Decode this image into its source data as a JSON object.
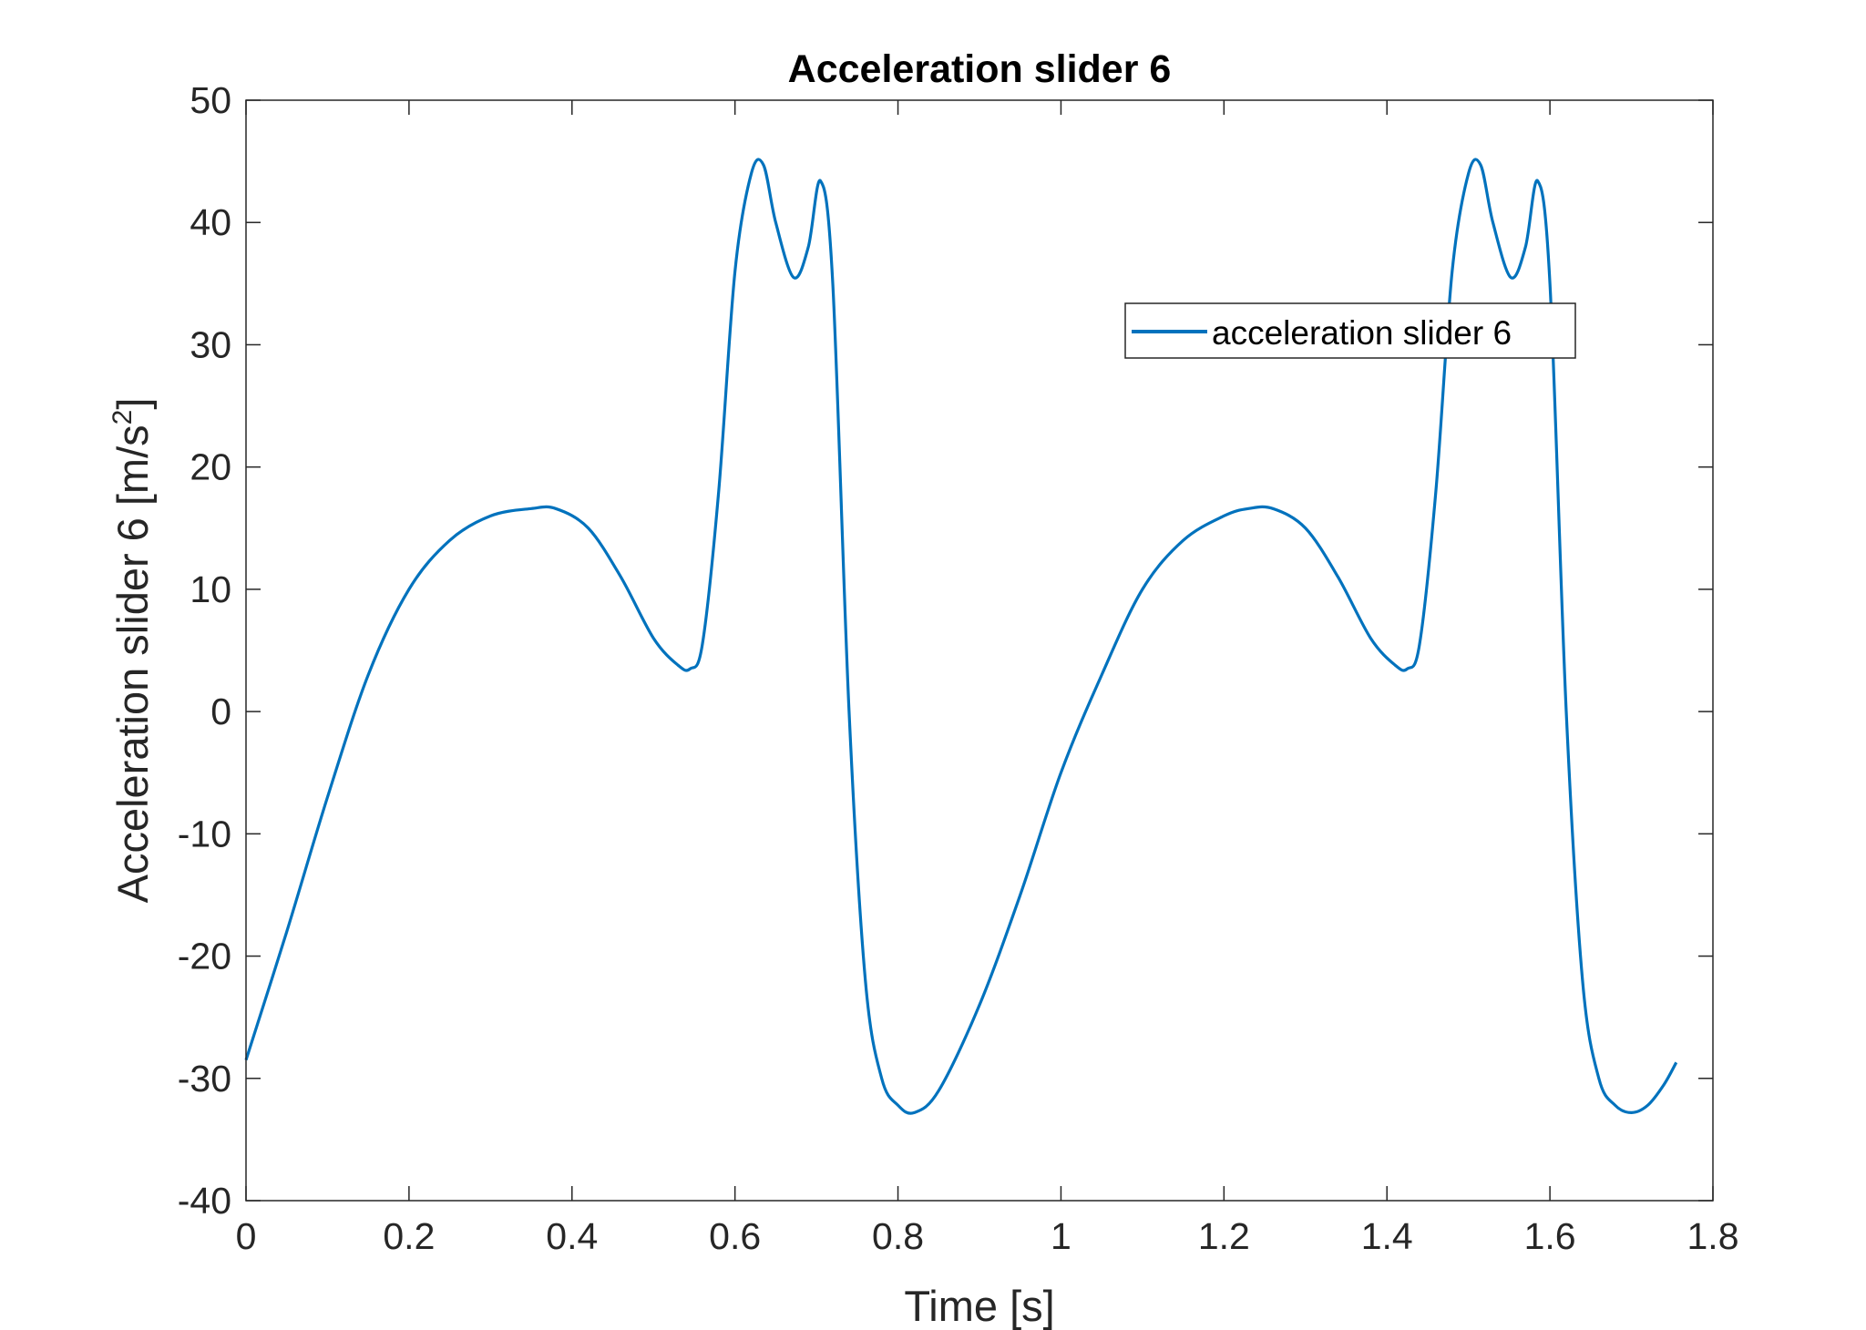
{
  "chart_data": {
    "type": "line",
    "title": "Acceleration slider 6",
    "xlabel": "Time [s]",
    "ylabel": "Acceleration slider 6 [m/s",
    "ylabel_sup": "2",
    "ylabel_end": "]",
    "xlim": [
      0,
      1.8
    ],
    "ylim": [
      -40,
      50
    ],
    "xticks": [
      0,
      0.2,
      0.4,
      0.6,
      0.8,
      1,
      1.2,
      1.4,
      1.6,
      1.8
    ],
    "xtick_labels": [
      "0",
      "0.2",
      "0.4",
      "0.6",
      "0.8",
      "1",
      "1.2",
      "1.4",
      "1.6",
      "1.8"
    ],
    "yticks": [
      -40,
      -30,
      -20,
      -10,
      0,
      10,
      20,
      30,
      40,
      50
    ],
    "ytick_labels": [
      "-40",
      "-30",
      "-20",
      "-10",
      "0",
      "10",
      "20",
      "30",
      "40",
      "50"
    ],
    "grid": false,
    "legend": {
      "placement": "upper-right",
      "entries": [
        "acceleration slider 6"
      ]
    },
    "colors": {
      "series": "#0072BD",
      "axes": "#262626"
    },
    "series": [
      {
        "name": "acceleration slider 6",
        "x": [
          0,
          0.05,
          0.1,
          0.15,
          0.2,
          0.25,
          0.3,
          0.35,
          0.38,
          0.42,
          0.46,
          0.5,
          0.53,
          0.545,
          0.56,
          0.58,
          0.6,
          0.62,
          0.635,
          0.65,
          0.672,
          0.69,
          0.705,
          0.72,
          0.74,
          0.76,
          0.78,
          0.8,
          0.82,
          0.85,
          0.9,
          0.95,
          1.0,
          1.05,
          1.1,
          1.15,
          1.2,
          1.23,
          1.26,
          1.3,
          1.34,
          1.38,
          1.41,
          1.425,
          1.44,
          1.46,
          1.48,
          1.5,
          1.515,
          1.53,
          1.552,
          1.57,
          1.585,
          1.6,
          1.62,
          1.64,
          1.66,
          1.68,
          1.7,
          1.72,
          1.74,
          1.755
        ],
        "y": [
          -28.5,
          -18,
          -7,
          3,
          10,
          14,
          16,
          16.6,
          16.6,
          15,
          11,
          6,
          3.8,
          3.5,
          5.5,
          18,
          36,
          44,
          44.7,
          40,
          35.5,
          38,
          43.4,
          35,
          0,
          -22,
          -30,
          -32.2,
          -32.8,
          -31,
          -24,
          -15,
          -5,
          3,
          10,
          14,
          16,
          16.6,
          16.6,
          15,
          11,
          6,
          3.8,
          3.5,
          5.5,
          18,
          36,
          44,
          44.7,
          40,
          35.5,
          38,
          43.4,
          35,
          0,
          -22,
          -30,
          -32.2,
          -32.8,
          -32.2,
          -30.5,
          -28.7
        ]
      }
    ]
  }
}
